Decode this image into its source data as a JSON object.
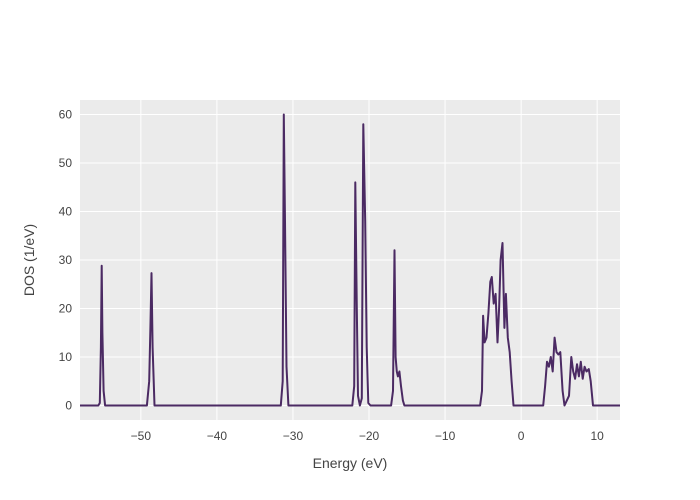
{
  "chart_data": {
    "type": "line",
    "title": "",
    "xlabel": "Energy (eV)",
    "ylabel": "DOS (1/eV)",
    "xlim": [
      -58,
      13
    ],
    "ylim": [
      -3,
      63
    ],
    "x_ticks": [
      -50,
      -40,
      -30,
      -20,
      -10,
      0,
      10
    ],
    "y_ticks": [
      0,
      10,
      20,
      30,
      40,
      50,
      60
    ],
    "x_tick_labels": [
      "−50",
      "−40",
      "−30",
      "−20",
      "−10",
      "0",
      "10"
    ],
    "y_tick_labels": [
      "0",
      "10",
      "20",
      "30",
      "40",
      "50",
      "60"
    ],
    "grid": true,
    "legend": "none",
    "colors": {
      "line": "#4b2a63",
      "plot_bg": "#ebebeb",
      "grid": "#ffffff",
      "text": "#444444"
    },
    "series": [
      {
        "x": [
          -58,
          -55.6,
          -55.4,
          -55.25,
          -55.15,
          -55.05,
          -54.9,
          -54.7,
          -49.2,
          -48.9,
          -48.75,
          -48.6,
          -48.45,
          -48.2,
          -31.6,
          -31.35,
          -31.2,
          -31.05,
          -30.85,
          -30.6,
          -22.2,
          -21.95,
          -21.8,
          -21.6,
          -21.45,
          -21.2,
          -20.95,
          -20.75,
          -20.5,
          -20.3,
          -20.1,
          -19.8,
          -17.1,
          -16.85,
          -16.65,
          -16.5,
          -16.35,
          -16.2,
          -16.0,
          -15.8,
          -15.55,
          -15.35,
          -15.15,
          -5.4,
          -5.15,
          -5.0,
          -4.8,
          -4.55,
          -4.3,
          -4.05,
          -3.85,
          -3.6,
          -3.35,
          -3.1,
          -2.9,
          -2.7,
          -2.45,
          -2.2,
          -2.0,
          -1.75,
          -1.5,
          -1.25,
          -1.0,
          -0.75,
          -0.5,
          -0.25,
          0.0,
          2.9,
          3.15,
          3.4,
          3.65,
          3.9,
          4.15,
          4.4,
          4.65,
          4.9,
          5.15,
          5.45,
          5.7,
          6.0,
          6.3,
          6.6,
          6.85,
          7.1,
          7.35,
          7.6,
          7.85,
          8.1,
          8.35,
          8.6,
          8.9,
          9.15,
          9.45,
          9.7,
          10.0,
          13
        ],
        "y": [
          0,
          0,
          0.5,
          12,
          28.8,
          15,
          3,
          0,
          0,
          5,
          16,
          27.3,
          12,
          0,
          0,
          5,
          60,
          38,
          8,
          0,
          0,
          4,
          46,
          20,
          2,
          0,
          1.5,
          58,
          38,
          12,
          0.5,
          0,
          0,
          3,
          32,
          10,
          7,
          6,
          7,
          4,
          1,
          0,
          0,
          0,
          3,
          18.5,
          13,
          14,
          19,
          25.5,
          26.5,
          21,
          23,
          13,
          20,
          30,
          33.5,
          16,
          23,
          14,
          11,
          5,
          0,
          0,
          0,
          0,
          0,
          0,
          4,
          9,
          8,
          10,
          7,
          14,
          11,
          10.5,
          11,
          3,
          0,
          1,
          2,
          10,
          7,
          5.5,
          8.5,
          6,
          9,
          5.5,
          8,
          7,
          7.5,
          5,
          0,
          0,
          0,
          0
        ]
      }
    ]
  }
}
